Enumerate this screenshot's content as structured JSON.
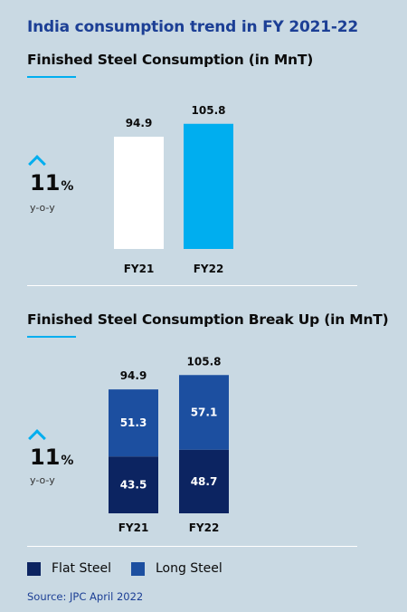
{
  "page": {
    "title": "India consumption trend in FY 2021-22",
    "source": "Source: JPC April 2022"
  },
  "colors": {
    "title": "#1c3f95",
    "accent": "#00aeef",
    "bar_fy21": "#ffffff",
    "bar_fy22": "#00aeef",
    "flat_steel": "#0c2461",
    "long_steel": "#1c4fa0"
  },
  "icons": {
    "growth": "chevron-up-icon"
  },
  "chart_data": [
    {
      "type": "bar",
      "title": "Finished Steel Consumption (in MnT)",
      "categories": [
        "FY21",
        "FY22"
      ],
      "values": [
        94.9,
        105.8
      ],
      "value_labels": [
        "94.9",
        "105.8"
      ],
      "growth": {
        "value": "11",
        "unit": "%",
        "label": "y-o-y"
      },
      "ylim": [
        0,
        110
      ]
    },
    {
      "type": "bar",
      "stacked": true,
      "title": "Finished Steel Consumption Break Up (in MnT)",
      "categories": [
        "FY21",
        "FY22"
      ],
      "totals": [
        94.9,
        105.8
      ],
      "total_labels": [
        "94.9",
        "105.8"
      ],
      "series": [
        {
          "name": "Flat Steel",
          "values": [
            43.5,
            48.7
          ],
          "labels": [
            "43.5",
            "48.7"
          ]
        },
        {
          "name": "Long Steel",
          "values": [
            51.3,
            57.1
          ],
          "labels": [
            "51.3",
            "57.1"
          ]
        }
      ],
      "growth": {
        "value": "11",
        "unit": "%",
        "label": "y-o-y"
      },
      "ylim": [
        0,
        110
      ]
    }
  ]
}
